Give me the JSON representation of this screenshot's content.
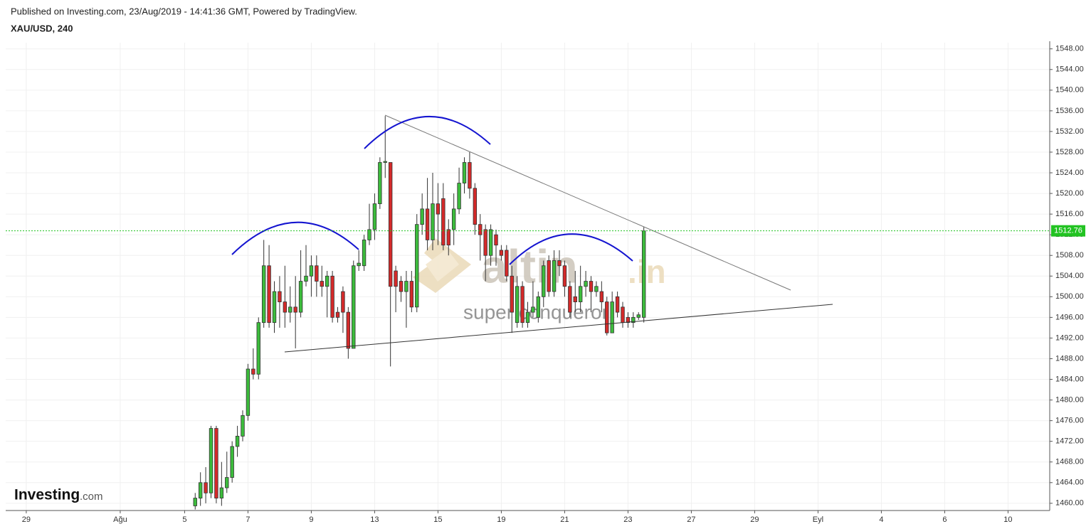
{
  "header": {
    "published": "Published on Investing.com, 23/Aug/2019 - 14:41:36 GMT, Powered by TradingView."
  },
  "watermark": {
    "brand": "altin",
    "suffix": ".in",
    "tagline": "super conqueror"
  },
  "logo": {
    "name": "Investing",
    "suffix": ".com"
  },
  "chart_data": {
    "type": "candlestick",
    "title": "XAU/USD, 240",
    "x": [
      2,
      3,
      4,
      5,
      6,
      7,
      8,
      9,
      10,
      11,
      12,
      13,
      14,
      15,
      16,
      17,
      18,
      19,
      20,
      21,
      22,
      23,
      24,
      25,
      26,
      27,
      28,
      29,
      30,
      31,
      32,
      33,
      34,
      35,
      36,
      37,
      38,
      39,
      40,
      41,
      42,
      43,
      44,
      45,
      46,
      47,
      48,
      49,
      50,
      51,
      52,
      53,
      54,
      55,
      56,
      57,
      58,
      59,
      60,
      61,
      62,
      63,
      64,
      65,
      66,
      67,
      68,
      69,
      70,
      71,
      72,
      73,
      74,
      75,
      76,
      77,
      78,
      79,
      80,
      81,
      82,
      83,
      84,
      85,
      86,
      87
    ],
    "open": [
      1459.5,
      1461,
      1464,
      1462,
      1474.5,
      1461,
      1463,
      1465,
      1471,
      1473,
      1477,
      1486,
      1485,
      1495,
      1506,
      1495,
      1501,
      1499,
      1497,
      1498,
      1497,
      1503,
      1504,
      1506,
      1503,
      1502,
      1504,
      1497,
      1501,
      1497,
      1490,
      1506,
      1506,
      1511,
      1513,
      1518,
      1526,
      1526,
      1505,
      1503,
      1501,
      1503,
      1498,
      1514,
      1517,
      1511,
      1518,
      1519,
      1513,
      1513,
      1517,
      1522,
      1526,
      1521,
      1514,
      1513,
      1508,
      1512,
      1509,
      1509,
      1504,
      1495,
      1502,
      1495,
      1497,
      1496,
      1500,
      1507,
      1501,
      1507,
      1506,
      1502,
      1500,
      1499,
      1502,
      1503,
      1501,
      1501,
      1499,
      1493,
      1500,
      1498,
      1496,
      1495,
      1496,
      1496
    ],
    "high": [
      1462,
      1466,
      1467,
      1475,
      1475,
      1468,
      1470,
      1472,
      1475,
      1478,
      1487,
      1490,
      1496,
      1511,
      1510,
      1503,
      1504,
      1506,
      1502,
      1504,
      1509,
      1510,
      1508,
      1508,
      1506,
      1505,
      1505,
      1498,
      1502,
      1498,
      1507,
      1509,
      1512,
      1518,
      1520,
      1527,
      1535,
      1526,
      1506,
      1504,
      1505,
      1505,
      1516,
      1520,
      1523,
      1524,
      1522,
      1522,
      1515,
      1520,
      1525,
      1527,
      1528,
      1522,
      1516,
      1514,
      1514,
      1513,
      1510,
      1510,
      1506,
      1504,
      1503,
      1499,
      1503,
      1501,
      1507,
      1508,
      1509,
      1509,
      1507,
      1503,
      1505,
      1506,
      1505,
      1504,
      1503,
      1503,
      1500,
      1501,
      1501,
      1499,
      1497,
      1497,
      1497,
      1513.5
    ],
    "low": [
      1458.8,
      1459.5,
      1460,
      1461,
      1460,
      1459.5,
      1462,
      1464,
      1469,
      1472,
      1476,
      1484,
      1484,
      1494,
      1494,
      1493,
      1494,
      1494,
      1495,
      1490,
      1496,
      1502,
      1500,
      1500,
      1500,
      1496,
      1495,
      1495,
      1493,
      1488,
      1490,
      1505,
      1505,
      1510,
      1511,
      1517,
      1523,
      1486.5,
      1497,
      1499,
      1494,
      1497,
      1497,
      1512,
      1509,
      1509,
      1510,
      1509,
      1508,
      1510,
      1516,
      1520,
      1519,
      1512,
      1507,
      1503,
      1506,
      1506,
      1507,
      1503,
      1493,
      1494,
      1494,
      1494,
      1496,
      1495,
      1498,
      1500,
      1500,
      1504,
      1500,
      1496,
      1497,
      1497,
      1500,
      1497,
      1500,
      1497,
      1492.5,
      1493,
      1496,
      1494,
      1494,
      1494,
      1495.5,
      1495
    ],
    "close": [
      1461,
      1464,
      1462,
      1474.5,
      1461,
      1463,
      1465,
      1471,
      1473,
      1477,
      1486,
      1485,
      1495,
      1506,
      1495,
      1501,
      1499,
      1497,
      1498,
      1497,
      1503,
      1504,
      1506,
      1503,
      1502,
      1504,
      1496,
      1496,
      1497,
      1490,
      1506,
      1506.5,
      1511,
      1513,
      1518,
      1526,
      1526.2,
      1502,
      1502,
      1501,
      1503,
      1498,
      1514,
      1517,
      1511,
      1518,
      1516,
      1510,
      1510,
      1517,
      1522,
      1526,
      1521,
      1514,
      1512,
      1508,
      1513,
      1510,
      1508,
      1504,
      1497,
      1502,
      1495,
      1497,
      1498,
      1500,
      1506,
      1501,
      1507,
      1506,
      1502,
      1497,
      1499,
      1502,
      1503,
      1501,
      1502,
      1499,
      1493,
      1499,
      1497,
      1495,
      1495,
      1496,
      1496.5,
      1512.76
    ],
    "up_color": "#3cbc3c",
    "down_color": "#d42a2a",
    "last_price": 1512.76,
    "last_price_color": "#22c322",
    "xlim": [
      -33.9,
      163.9
    ],
    "xticks": [
      {
        "value": -30,
        "label": "29"
      },
      {
        "value": -12.2,
        "label": "Ağu"
      },
      {
        "value": 0,
        "label": "5"
      },
      {
        "value": 12,
        "label": "7"
      },
      {
        "value": 24,
        "label": "9"
      },
      {
        "value": 36,
        "label": "13"
      },
      {
        "value": 48,
        "label": "15"
      },
      {
        "value": 60,
        "label": "19"
      },
      {
        "value": 72,
        "label": "21"
      },
      {
        "value": 84,
        "label": "23"
      },
      {
        "value": 96,
        "label": "27"
      },
      {
        "value": 108,
        "label": "29"
      },
      {
        "value": 120,
        "label": "Eyl"
      },
      {
        "value": 132,
        "label": "4"
      },
      {
        "value": 144,
        "label": "6"
      },
      {
        "value": 156,
        "label": "10"
      }
    ],
    "ylim": [
      1458.6,
      1549.2
    ],
    "yticks": [
      {
        "value": 1460,
        "label": "1460.00"
      },
      {
        "value": 1464,
        "label": "1464.00"
      },
      {
        "value": 1468,
        "label": "1468.00"
      },
      {
        "value": 1472,
        "label": "1472.00"
      },
      {
        "value": 1476,
        "label": "1476.00"
      },
      {
        "value": 1480,
        "label": "1480.00"
      },
      {
        "value": 1484,
        "label": "1484.00"
      },
      {
        "value": 1488,
        "label": "1488.00"
      },
      {
        "value": 1492,
        "label": "1492.00"
      },
      {
        "value": 1496,
        "label": "1496.00"
      },
      {
        "value": 1500,
        "label": "1500.00"
      },
      {
        "value": 1504,
        "label": "1504.00"
      },
      {
        "value": 1508,
        "label": "1508.00"
      },
      {
        "value": 1512,
        "label": "1512.00"
      },
      {
        "value": 1516,
        "label": "1516.00"
      },
      {
        "value": 1520,
        "label": "1520.00"
      },
      {
        "value": 1524,
        "label": "1524.00"
      },
      {
        "value": 1528,
        "label": "1528.00"
      },
      {
        "value": 1532,
        "label": "1532.00"
      },
      {
        "value": 1536,
        "label": "1536.00"
      },
      {
        "value": 1540,
        "label": "1540.00"
      },
      {
        "value": 1544,
        "label": "1544.00"
      },
      {
        "value": 1548,
        "label": "1548.00"
      }
    ],
    "grid": true
  }
}
